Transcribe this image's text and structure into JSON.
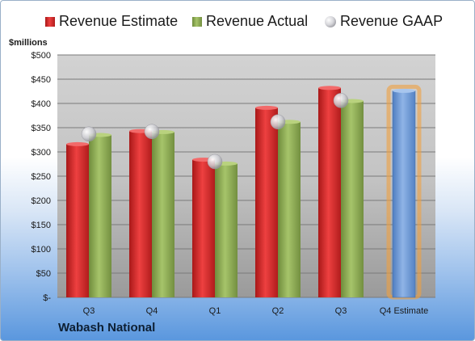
{
  "chart_data": {
    "type": "bar",
    "categories": [
      "Q3",
      "Q4",
      "Q1",
      "Q2",
      "Q3",
      "Q4 Estimate"
    ],
    "series": [
      {
        "name": "Revenue Estimate",
        "values": [
          316,
          343,
          284,
          391,
          432,
          null
        ]
      },
      {
        "name": "Revenue Actual",
        "values": [
          335,
          341,
          276,
          362,
          405,
          426
        ]
      },
      {
        "name": "Revenue GAAP",
        "values": [
          337,
          342,
          280,
          362,
          406,
          null
        ]
      }
    ],
    "ylabel": "$millions",
    "yticks": [
      "$-",
      "$50",
      "$100",
      "$150",
      "$200",
      "$250",
      "$300",
      "$350",
      "$400",
      "$450",
      "$500"
    ],
    "ylim": [
      0,
      500
    ],
    "legend_position": "top",
    "grid": true,
    "colors": {
      "estimate": "#d42a2a",
      "actual": "#8cab52",
      "gaap": "#c8c8cc",
      "forecast": "#6f9ad6",
      "forecast_glow": "#f0a040"
    }
  },
  "footer": {
    "company": "Wabash National"
  }
}
